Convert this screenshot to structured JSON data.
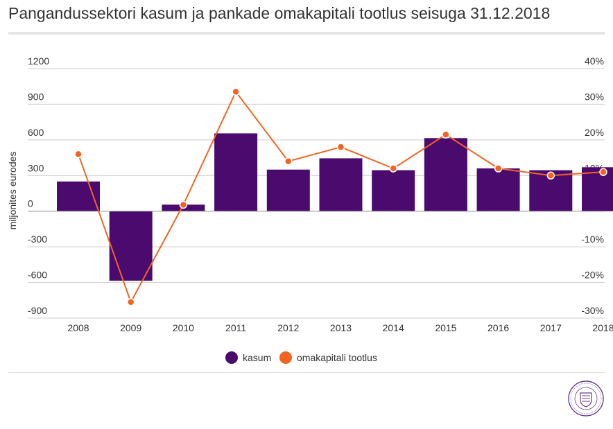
{
  "page": {
    "title": "Pangandussektori kasum ja pankade omakapitali tootlus seisuga 31.12.2018"
  },
  "chart_data": {
    "type": "bar",
    "title": "Pangandussektori kasum ja pankade omakapitali tootlus seisuga 31.12.2018",
    "xlabel": "",
    "ylabel": "miljonites eurodes",
    "categories": [
      "2008",
      "2009",
      "2010",
      "2011",
      "2012",
      "2013",
      "2014",
      "2015",
      "2016",
      "2017",
      "2018"
    ],
    "series": [
      {
        "name": "kasum",
        "type": "bar",
        "axis": "left",
        "color": "#4b0a6e",
        "values": [
          250,
          -585,
          55,
          655,
          350,
          445,
          345,
          615,
          360,
          345,
          370
        ]
      },
      {
        "name": "omakapitali tootlus",
        "type": "line",
        "axis": "right",
        "color": "#f36422",
        "values": [
          16,
          -25.5,
          1.8,
          33.5,
          14,
          18,
          12,
          21.5,
          12,
          10,
          11
        ]
      }
    ],
    "ylim": [
      -900,
      1200
    ],
    "y2lim": [
      -30,
      40
    ],
    "yticks": [
      "1200",
      "900",
      "600",
      "300",
      "0",
      "-300",
      "-600",
      "-900"
    ],
    "yticks_values": [
      1200,
      900,
      600,
      300,
      0,
      -300,
      -600,
      -900
    ],
    "y2ticks": [
      "40%",
      "30%",
      "20%",
      "10%",
      "0",
      "-10%",
      "-20%",
      "-30%"
    ],
    "y2ticks_values": [
      40,
      30,
      20,
      10,
      0,
      -10,
      -20,
      -30
    ],
    "grid": true,
    "legend_position": "bottom-center"
  },
  "colors": {
    "bar": "#4b0a6e",
    "line": "#f36422",
    "grid": "#cccccc",
    "text": "#333333",
    "seal": "#6a3d8c"
  },
  "icons": {
    "seal": "eesti-pank-seal-icon"
  }
}
